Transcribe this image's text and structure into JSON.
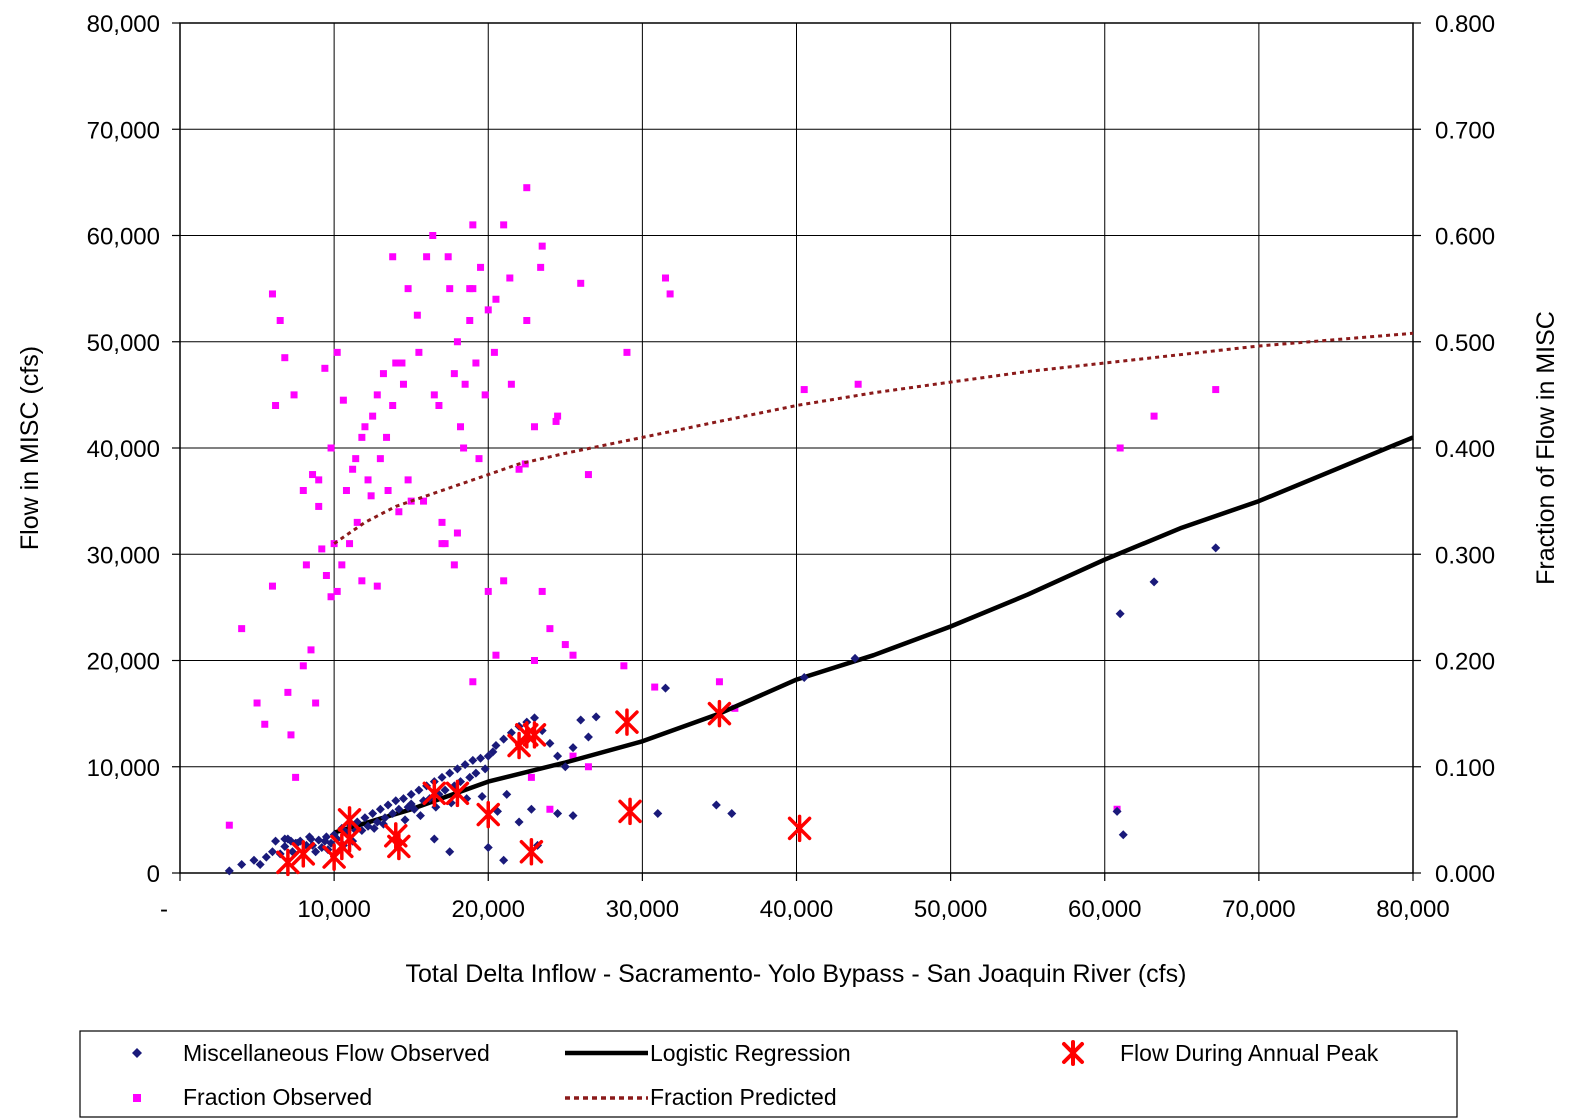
{
  "chart_data": {
    "type": "scatter",
    "title": "",
    "xlabel": "Total Delta Inflow - Sacramento- Yolo Bypass - San Joaquin River (cfs)",
    "ylabel": "Flow in MISC (cfs)",
    "y2label": "Fraction of Flow in MISC",
    "xlim": [
      0,
      80000
    ],
    "ylim": [
      0,
      80000
    ],
    "y2lim": [
      0,
      0.8
    ],
    "grid": true,
    "legend_position": "bottom",
    "x_ticks": [
      "-",
      "10,000",
      "20,000",
      "30,000",
      "40,000",
      "50,000",
      "60,000",
      "70,000",
      "80,000"
    ],
    "y_ticks": [
      "0",
      "10,000",
      "20,000",
      "30,000",
      "40,000",
      "50,000",
      "60,000",
      "70,000",
      "80,000"
    ],
    "y2_ticks": [
      "0.000",
      "0.100",
      "0.200",
      "0.300",
      "0.400",
      "0.500",
      "0.600",
      "0.700",
      "0.800"
    ],
    "series": [
      {
        "name": "Miscellaneous Flow Observed",
        "kind": "scatter",
        "marker": "diamond",
        "color": "#1a1a7a",
        "axis": "left",
        "x": [
          3200,
          4000,
          4800,
          5200,
          5600,
          6000,
          6200,
          6500,
          6800,
          7000,
          7300,
          7500,
          7800,
          8000,
          8200,
          8500,
          8800,
          9000,
          9200,
          9500,
          9800,
          10000,
          10200,
          10500,
          10800,
          11000,
          11200,
          11500,
          11800,
          12000,
          12200,
          12500,
          12800,
          13000,
          13300,
          13500,
          13800,
          14000,
          14200,
          14500,
          14800,
          15000,
          15200,
          15500,
          15800,
          16000,
          16200,
          16500,
          16800,
          17000,
          17200,
          17500,
          17800,
          18000,
          18200,
          18500,
          18800,
          19000,
          19200,
          19500,
          19800,
          20000,
          20300,
          20500,
          21000,
          21500,
          22000,
          22500,
          23000,
          23500,
          24000,
          24500,
          25000,
          25500,
          26000,
          26500,
          27000,
          6800,
          7200,
          7600,
          8400,
          8600,
          9400,
          9600,
          10600,
          11400,
          12600,
          13200,
          14600,
          15600,
          16600,
          17600,
          18600,
          19600,
          20600,
          21200,
          23200,
          22800,
          20000,
          21000,
          22000,
          24500,
          25500,
          31000,
          31500,
          34800,
          35800,
          40500,
          43800,
          61000,
          61200,
          63200,
          67200,
          60800,
          16500,
          17500,
          15000
        ],
        "y": [
          200,
          800,
          1200,
          800,
          1500,
          2000,
          3000,
          1800,
          2500,
          3200,
          2000,
          2800,
          3000,
          1600,
          2600,
          3200,
          2000,
          3100,
          2400,
          3400,
          2800,
          3600,
          3200,
          4200,
          3800,
          4600,
          3000,
          4800,
          4000,
          5200,
          4400,
          5600,
          4800,
          6000,
          5200,
          6400,
          5600,
          6800,
          6000,
          7000,
          6200,
          7400,
          6000,
          7800,
          6800,
          8200,
          7000,
          8600,
          7400,
          9000,
          7800,
          9400,
          8200,
          9800,
          8600,
          10200,
          9000,
          10600,
          9400,
          10800,
          9800,
          11000,
          11400,
          12000,
          12600,
          13200,
          13800,
          14200,
          14600,
          13400,
          12200,
          11000,
          10000,
          11800,
          14400,
          12800,
          14700,
          3200,
          3000,
          2800,
          3400,
          2600,
          3000,
          2200,
          2600,
          4000,
          4200,
          4600,
          5000,
          5400,
          6200,
          6600,
          7000,
          7200,
          5800,
          7400,
          2600,
          6000,
          2400,
          1200,
          4800,
          5600,
          5400,
          5600,
          17400,
          6400,
          5600,
          18400,
          20200,
          24400,
          3600,
          27400,
          30600,
          5800,
          3200,
          2000,
          6500
        ]
      },
      {
        "name": "Fraction Observed",
        "kind": "scatter",
        "marker": "square",
        "color": "#ff00ff",
        "axis": "right",
        "x": [
          3200,
          4000,
          5000,
          5500,
          6000,
          6200,
          6500,
          7000,
          7200,
          7500,
          8000,
          8200,
          8500,
          8800,
          9000,
          9200,
          9500,
          9800,
          10000,
          10200,
          10500,
          10800,
          11000,
          11200,
          11500,
          11800,
          12000,
          12200,
          12500,
          12800,
          13000,
          13200,
          13500,
          13800,
          14000,
          14200,
          14500,
          14800,
          15000,
          15500,
          16000,
          16500,
          17000,
          17200,
          17500,
          17800,
          18000,
          18200,
          18500,
          18800,
          19000,
          19200,
          19500,
          19800,
          20000,
          20500,
          21000,
          21500,
          22000,
          22500,
          23000,
          23500,
          24000,
          24500,
          25000,
          25500,
          26000,
          26500,
          6000,
          6800,
          7400,
          8000,
          8600,
          9000,
          9400,
          9800,
          10200,
          10600,
          11400,
          12400,
          13400,
          14400,
          15400,
          16400,
          17400,
          18400,
          19400,
          20400,
          21400,
          22400,
          23400,
          24400,
          16800,
          17800,
          18800,
          11800,
          12800,
          13800,
          14800,
          15800,
          17000,
          18000,
          19000,
          20000,
          21000,
          22500,
          23500,
          31500,
          31800,
          29000,
          35000,
          36000,
          40500,
          44000,
          61000,
          63200,
          67200,
          60800,
          28800,
          30800,
          26500,
          24000,
          19000,
          23000,
          22800,
          25500,
          20500
        ],
        "y": [
          0.045,
          0.23,
          0.16,
          0.14,
          0.27,
          0.44,
          0.52,
          0.17,
          0.13,
          0.09,
          0.195,
          0.29,
          0.21,
          0.16,
          0.37,
          0.305,
          0.28,
          0.26,
          0.31,
          0.265,
          0.29,
          0.36,
          0.31,
          0.38,
          0.33,
          0.41,
          0.42,
          0.37,
          0.43,
          0.45,
          0.39,
          0.47,
          0.36,
          0.44,
          0.48,
          0.34,
          0.46,
          0.55,
          0.35,
          0.49,
          0.58,
          0.45,
          0.33,
          0.31,
          0.55,
          0.29,
          0.5,
          0.42,
          0.46,
          0.52,
          0.55,
          0.48,
          0.57,
          0.45,
          0.53,
          0.54,
          0.61,
          0.46,
          0.38,
          0.52,
          0.42,
          0.59,
          0.23,
          0.43,
          0.215,
          0.205,
          0.555,
          0.375,
          0.545,
          0.485,
          0.45,
          0.36,
          0.375,
          0.345,
          0.475,
          0.4,
          0.49,
          0.445,
          0.39,
          0.355,
          0.41,
          0.48,
          0.525,
          0.6,
          0.58,
          0.4,
          0.39,
          0.49,
          0.56,
          0.385,
          0.57,
          0.425,
          0.44,
          0.47,
          0.55,
          0.275,
          0.27,
          0.58,
          0.37,
          0.35,
          0.31,
          0.32,
          0.61,
          0.265,
          0.275,
          0.645,
          0.265,
          0.56,
          0.545,
          0.49,
          0.18,
          0.155,
          0.455,
          0.46,
          0.4,
          0.43,
          0.455,
          0.06,
          0.195,
          0.175,
          0.1,
          0.06,
          0.18,
          0.2,
          0.09,
          0.11,
          0.205
        ]
      },
      {
        "name": "Flow During Annual Peak",
        "kind": "scatter",
        "marker": "asterisk",
        "color": "#ff0000",
        "axis": "left",
        "x": [
          7000,
          8000,
          10000,
          10500,
          11000,
          11000,
          14000,
          14200,
          16500,
          18000,
          20000,
          22000,
          22500,
          22800,
          23000,
          29000,
          29200,
          35000,
          40200
        ],
        "y": [
          1000,
          1800,
          1500,
          2500,
          3200,
          5000,
          3500,
          2500,
          7500,
          7500,
          5500,
          12000,
          13000,
          2000,
          13000,
          14200,
          5800,
          15000,
          4200
        ]
      },
      {
        "name": "Logistic Regression",
        "kind": "line",
        "style": "solid",
        "color": "#000000",
        "axis": "left",
        "x": [
          10000,
          15000,
          20000,
          25000,
          30000,
          35000,
          40000,
          45000,
          50000,
          55000,
          60000,
          65000,
          70000,
          75000,
          80000
        ],
        "y": [
          3800,
          6000,
          8600,
          10400,
          12400,
          15000,
          18200,
          20500,
          23200,
          26200,
          29500,
          32500,
          35000,
          38000,
          41000
        ]
      },
      {
        "name": "Fraction Predicted",
        "kind": "line",
        "style": "dotted",
        "color": "#8b1a1a",
        "axis": "right",
        "x": [
          10000,
          12000,
          14000,
          16000,
          18000,
          20000,
          22000,
          25000,
          30000,
          35000,
          40000,
          45000,
          50000,
          55000,
          60000,
          65000,
          70000,
          75000,
          80000
        ],
        "y": [
          0.31,
          0.33,
          0.345,
          0.355,
          0.365,
          0.375,
          0.385,
          0.395,
          0.41,
          0.425,
          0.44,
          0.452,
          0.462,
          0.472,
          0.48,
          0.488,
          0.496,
          0.502,
          0.508
        ]
      }
    ]
  },
  "legend": {
    "items": [
      {
        "label": "Miscellaneous Flow Observed",
        "symbol": "diamond",
        "color": "#1a1a7a"
      },
      {
        "label": "Logistic Regression",
        "symbol": "solid-line",
        "color": "#000000"
      },
      {
        "label": "Flow During Annual Peak",
        "symbol": "asterisk",
        "color": "#ff0000"
      },
      {
        "label": "Fraction Observed",
        "symbol": "square",
        "color": "#ff00ff"
      },
      {
        "label": "Fraction Predicted",
        "symbol": "dotted-line",
        "color": "#8b1a1a"
      }
    ]
  }
}
